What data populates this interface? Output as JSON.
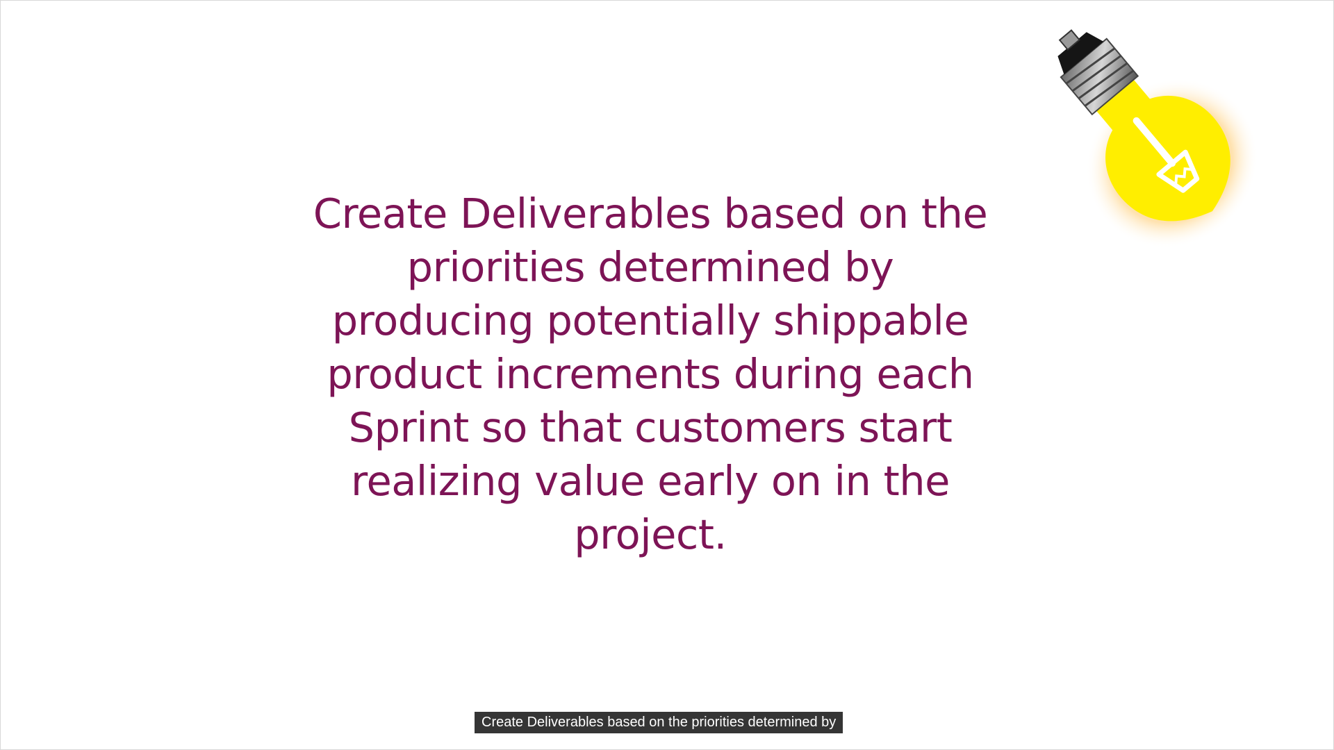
{
  "slide": {
    "lines": [
      "Create Deliverables based on the",
      "priorities determined by",
      "producing potentially shippable",
      "product increments during each",
      "Sprint so that customers start",
      "realizing value early on in the",
      "project."
    ],
    "text_color": "#7d1456",
    "icon": "lightbulb-icon",
    "bulb_color": "#ffee00"
  },
  "caption": {
    "text": "Create Deliverables based on the priorities determined by"
  }
}
